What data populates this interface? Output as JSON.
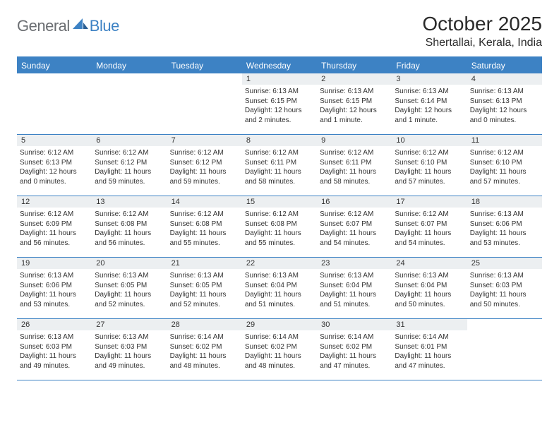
{
  "brand": {
    "part1": "General",
    "part2": "Blue"
  },
  "title": "October 2025",
  "location": "Shertallai, Kerala, India",
  "colors": {
    "accent": "#3d82c4",
    "logo_gray": "#6b6e72",
    "daynum_bg": "#eceff1",
    "text": "#333333",
    "background": "#ffffff"
  },
  "weekdays": [
    "Sunday",
    "Monday",
    "Tuesday",
    "Wednesday",
    "Thursday",
    "Friday",
    "Saturday"
  ],
  "weeks": [
    [
      {
        "day": "",
        "sunrise": "",
        "sunset": "",
        "daylight": ""
      },
      {
        "day": "",
        "sunrise": "",
        "sunset": "",
        "daylight": ""
      },
      {
        "day": "",
        "sunrise": "",
        "sunset": "",
        "daylight": ""
      },
      {
        "day": "1",
        "sunrise": "Sunrise: 6:13 AM",
        "sunset": "Sunset: 6:15 PM",
        "daylight": "Daylight: 12 hours and 2 minutes."
      },
      {
        "day": "2",
        "sunrise": "Sunrise: 6:13 AM",
        "sunset": "Sunset: 6:15 PM",
        "daylight": "Daylight: 12 hours and 1 minute."
      },
      {
        "day": "3",
        "sunrise": "Sunrise: 6:13 AM",
        "sunset": "Sunset: 6:14 PM",
        "daylight": "Daylight: 12 hours and 1 minute."
      },
      {
        "day": "4",
        "sunrise": "Sunrise: 6:13 AM",
        "sunset": "Sunset: 6:13 PM",
        "daylight": "Daylight: 12 hours and 0 minutes."
      }
    ],
    [
      {
        "day": "5",
        "sunrise": "Sunrise: 6:12 AM",
        "sunset": "Sunset: 6:13 PM",
        "daylight": "Daylight: 12 hours and 0 minutes."
      },
      {
        "day": "6",
        "sunrise": "Sunrise: 6:12 AM",
        "sunset": "Sunset: 6:12 PM",
        "daylight": "Daylight: 11 hours and 59 minutes."
      },
      {
        "day": "7",
        "sunrise": "Sunrise: 6:12 AM",
        "sunset": "Sunset: 6:12 PM",
        "daylight": "Daylight: 11 hours and 59 minutes."
      },
      {
        "day": "8",
        "sunrise": "Sunrise: 6:12 AM",
        "sunset": "Sunset: 6:11 PM",
        "daylight": "Daylight: 11 hours and 58 minutes."
      },
      {
        "day": "9",
        "sunrise": "Sunrise: 6:12 AM",
        "sunset": "Sunset: 6:11 PM",
        "daylight": "Daylight: 11 hours and 58 minutes."
      },
      {
        "day": "10",
        "sunrise": "Sunrise: 6:12 AM",
        "sunset": "Sunset: 6:10 PM",
        "daylight": "Daylight: 11 hours and 57 minutes."
      },
      {
        "day": "11",
        "sunrise": "Sunrise: 6:12 AM",
        "sunset": "Sunset: 6:10 PM",
        "daylight": "Daylight: 11 hours and 57 minutes."
      }
    ],
    [
      {
        "day": "12",
        "sunrise": "Sunrise: 6:12 AM",
        "sunset": "Sunset: 6:09 PM",
        "daylight": "Daylight: 11 hours and 56 minutes."
      },
      {
        "day": "13",
        "sunrise": "Sunrise: 6:12 AM",
        "sunset": "Sunset: 6:08 PM",
        "daylight": "Daylight: 11 hours and 56 minutes."
      },
      {
        "day": "14",
        "sunrise": "Sunrise: 6:12 AM",
        "sunset": "Sunset: 6:08 PM",
        "daylight": "Daylight: 11 hours and 55 minutes."
      },
      {
        "day": "15",
        "sunrise": "Sunrise: 6:12 AM",
        "sunset": "Sunset: 6:08 PM",
        "daylight": "Daylight: 11 hours and 55 minutes."
      },
      {
        "day": "16",
        "sunrise": "Sunrise: 6:12 AM",
        "sunset": "Sunset: 6:07 PM",
        "daylight": "Daylight: 11 hours and 54 minutes."
      },
      {
        "day": "17",
        "sunrise": "Sunrise: 6:12 AM",
        "sunset": "Sunset: 6:07 PM",
        "daylight": "Daylight: 11 hours and 54 minutes."
      },
      {
        "day": "18",
        "sunrise": "Sunrise: 6:13 AM",
        "sunset": "Sunset: 6:06 PM",
        "daylight": "Daylight: 11 hours and 53 minutes."
      }
    ],
    [
      {
        "day": "19",
        "sunrise": "Sunrise: 6:13 AM",
        "sunset": "Sunset: 6:06 PM",
        "daylight": "Daylight: 11 hours and 53 minutes."
      },
      {
        "day": "20",
        "sunrise": "Sunrise: 6:13 AM",
        "sunset": "Sunset: 6:05 PM",
        "daylight": "Daylight: 11 hours and 52 minutes."
      },
      {
        "day": "21",
        "sunrise": "Sunrise: 6:13 AM",
        "sunset": "Sunset: 6:05 PM",
        "daylight": "Daylight: 11 hours and 52 minutes."
      },
      {
        "day": "22",
        "sunrise": "Sunrise: 6:13 AM",
        "sunset": "Sunset: 6:04 PM",
        "daylight": "Daylight: 11 hours and 51 minutes."
      },
      {
        "day": "23",
        "sunrise": "Sunrise: 6:13 AM",
        "sunset": "Sunset: 6:04 PM",
        "daylight": "Daylight: 11 hours and 51 minutes."
      },
      {
        "day": "24",
        "sunrise": "Sunrise: 6:13 AM",
        "sunset": "Sunset: 6:04 PM",
        "daylight": "Daylight: 11 hours and 50 minutes."
      },
      {
        "day": "25",
        "sunrise": "Sunrise: 6:13 AM",
        "sunset": "Sunset: 6:03 PM",
        "daylight": "Daylight: 11 hours and 50 minutes."
      }
    ],
    [
      {
        "day": "26",
        "sunrise": "Sunrise: 6:13 AM",
        "sunset": "Sunset: 6:03 PM",
        "daylight": "Daylight: 11 hours and 49 minutes."
      },
      {
        "day": "27",
        "sunrise": "Sunrise: 6:13 AM",
        "sunset": "Sunset: 6:03 PM",
        "daylight": "Daylight: 11 hours and 49 minutes."
      },
      {
        "day": "28",
        "sunrise": "Sunrise: 6:14 AM",
        "sunset": "Sunset: 6:02 PM",
        "daylight": "Daylight: 11 hours and 48 minutes."
      },
      {
        "day": "29",
        "sunrise": "Sunrise: 6:14 AM",
        "sunset": "Sunset: 6:02 PM",
        "daylight": "Daylight: 11 hours and 48 minutes."
      },
      {
        "day": "30",
        "sunrise": "Sunrise: 6:14 AM",
        "sunset": "Sunset: 6:02 PM",
        "daylight": "Daylight: 11 hours and 47 minutes."
      },
      {
        "day": "31",
        "sunrise": "Sunrise: 6:14 AM",
        "sunset": "Sunset: 6:01 PM",
        "daylight": "Daylight: 11 hours and 47 minutes."
      },
      {
        "day": "",
        "sunrise": "",
        "sunset": "",
        "daylight": ""
      }
    ]
  ]
}
